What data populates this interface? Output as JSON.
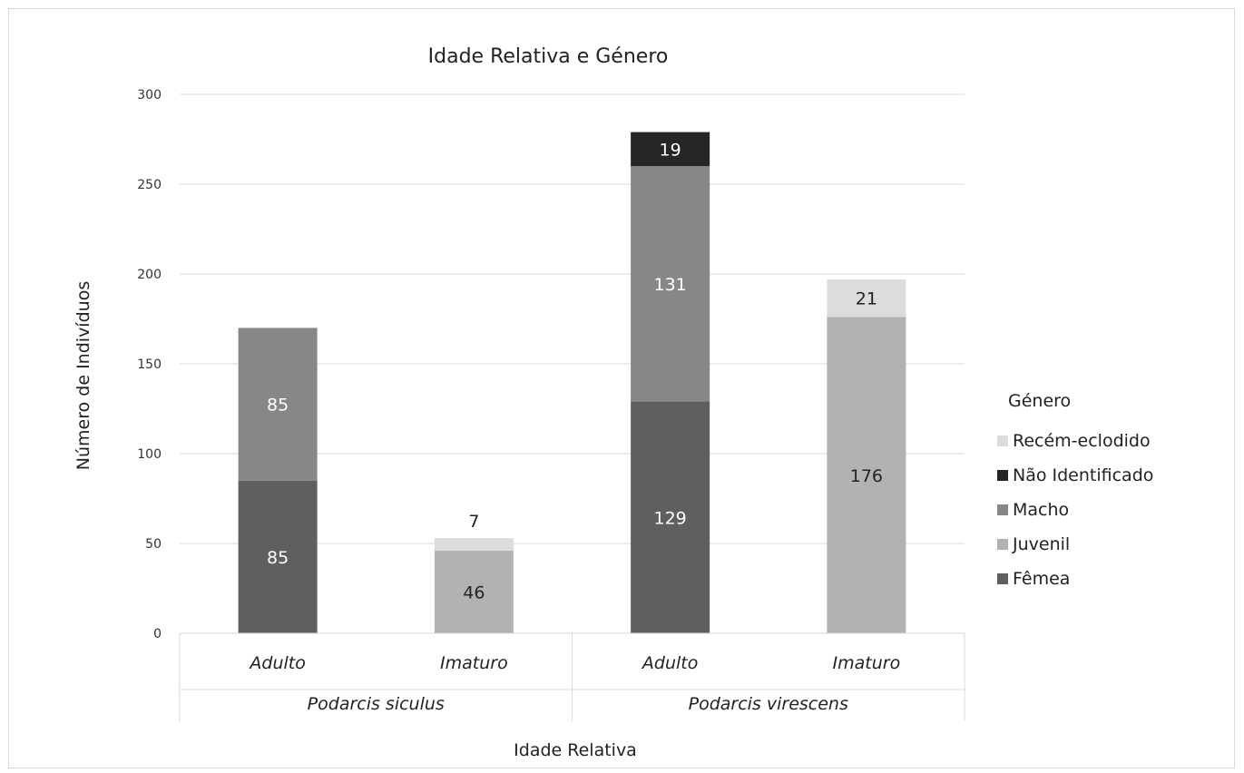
{
  "chart_data": {
    "type": "bar",
    "stacked": true,
    "title": "Idade Relativa e Género",
    "xlabel": "Idade Relativa",
    "ylabel": "Número de Indivíduos",
    "ylim": [
      0,
      300
    ],
    "yticks": [
      0,
      50,
      100,
      150,
      200,
      250,
      300
    ],
    "grid": true,
    "legend_title": "Género",
    "legend_position": "right",
    "groups": [
      {
        "label": "Podarcis siculus",
        "categories": [
          "Adulto",
          "Imaturo"
        ]
      },
      {
        "label": "Podarcis virescens",
        "categories": [
          "Adulto",
          "Imaturo"
        ]
      }
    ],
    "categories": [
      "Adulto",
      "Imaturo",
      "Adulto",
      "Imaturo"
    ],
    "series": [
      {
        "name": "Fêmea",
        "color": "#5f5f5f",
        "values": [
          85,
          0,
          129,
          0
        ]
      },
      {
        "name": "Juvenil",
        "color": "#b2b2b2",
        "values": [
          0,
          46,
          0,
          176
        ]
      },
      {
        "name": "Macho",
        "color": "#878787",
        "values": [
          85,
          0,
          131,
          0
        ]
      },
      {
        "name": "Não Identificado",
        "color": "#262626",
        "values": [
          0,
          0,
          19,
          0
        ]
      },
      {
        "name": "Recém-eclodido",
        "color": "#dcdcdc",
        "values": [
          0,
          7,
          0,
          21
        ]
      }
    ],
    "legend_order": [
      "Recém-eclodido",
      "Não Identificado",
      "Macho",
      "Juvenil",
      "Fêmea"
    ]
  }
}
